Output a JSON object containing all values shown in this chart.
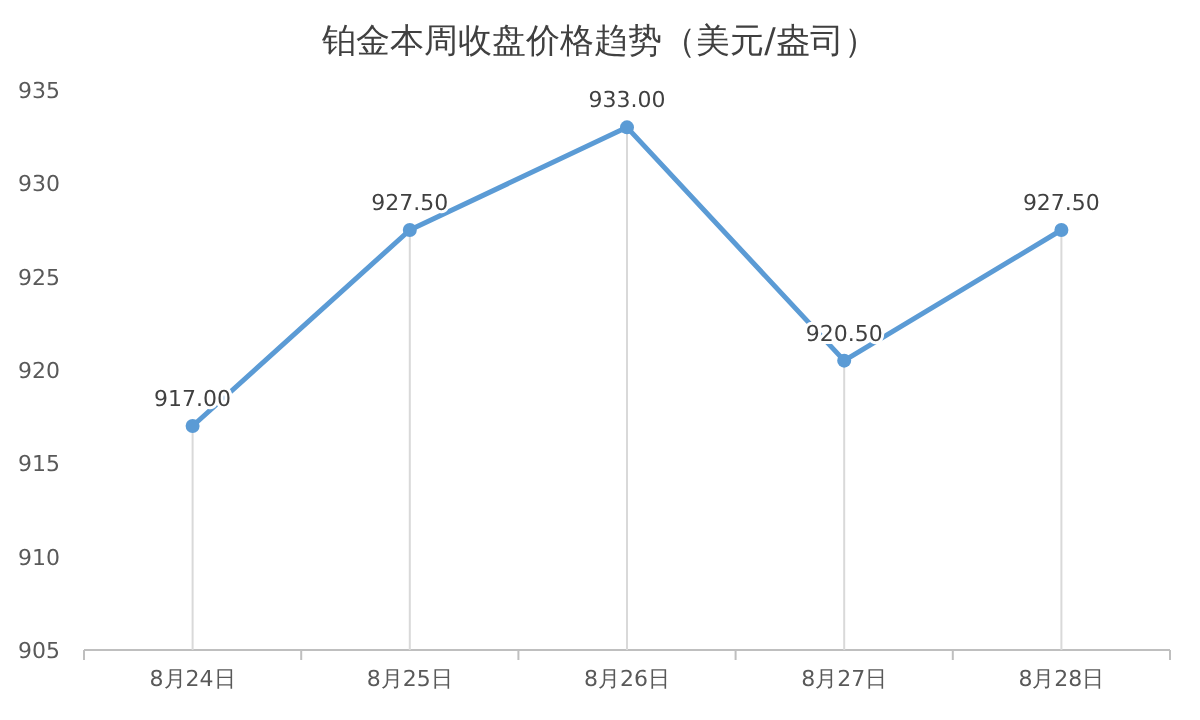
{
  "chart_data": {
    "type": "line",
    "title": "铂金本周收盘价格趋势（美元/盎司）",
    "categories": [
      "8月24日",
      "8月25日",
      "8月26日",
      "8月27日",
      "8月28日"
    ],
    "series": [
      {
        "color": "#5b9bd5",
        "values": [
          917.0,
          927.5,
          933.0,
          920.5,
          927.5
        ]
      }
    ],
    "value_labels": [
      "917.00",
      "927.50",
      "933.00",
      "920.50",
      "927.50"
    ],
    "ylim": [
      905,
      935
    ],
    "yticks": [
      905,
      910,
      915,
      920,
      925,
      930,
      935
    ],
    "grid": "x",
    "marker": "circle",
    "line_style": "solid"
  }
}
